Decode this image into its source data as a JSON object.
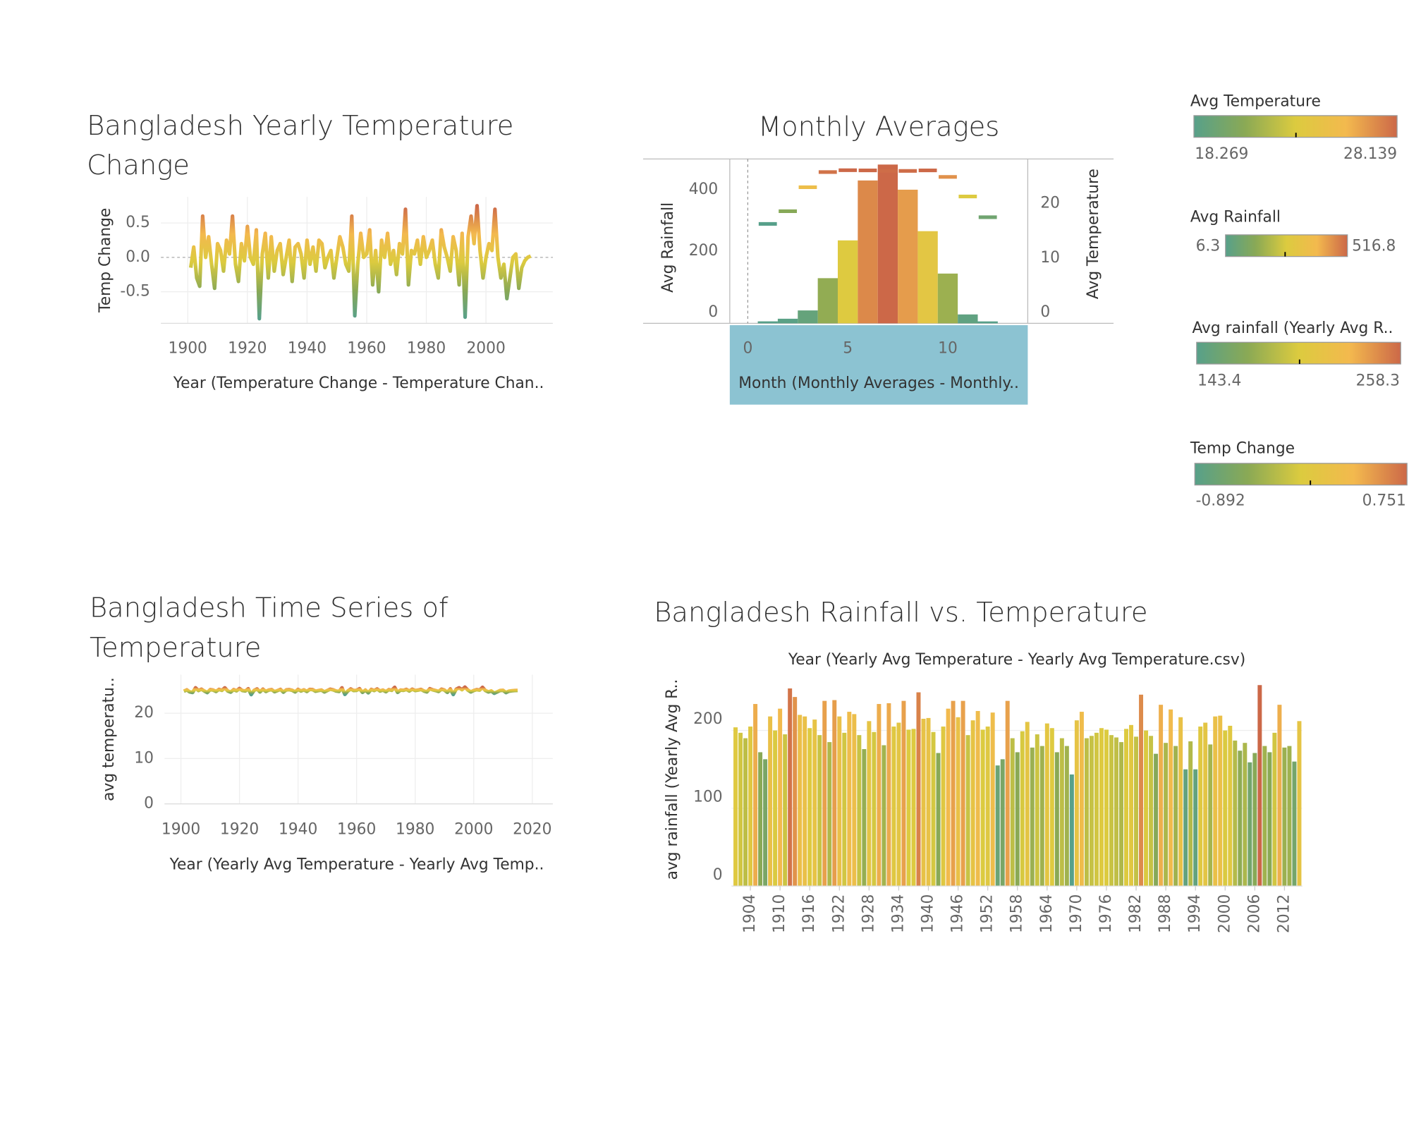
{
  "palette": [
    "#57a08a",
    "#8aa955",
    "#dccb3f",
    "#f3b94e",
    "#cc6848"
  ],
  "legends": [
    {
      "title": "Avg Temperature",
      "min": 18.269,
      "max": 28.139
    },
    {
      "title": "Avg Rainfall",
      "min": 6.3,
      "max": 516.8
    },
    {
      "title": "Avg rainfall (Yearly Avg R..",
      "min": 143.4,
      "max": 258.3
    },
    {
      "title": "Temp Change",
      "min": -0.892,
      "max": 0.751
    }
  ],
  "chart_data": [
    {
      "type": "line",
      "title": "Bangladesh Yearly Temperature Change",
      "y_label": "Temp Change",
      "x_label": "Year (Temperature Change - Temperature Chan..",
      "x": [
        1901,
        1902,
        1903,
        1904,
        1905,
        1906,
        1907,
        1908,
        1909,
        1910,
        1911,
        1912,
        1913,
        1914,
        1915,
        1916,
        1917,
        1918,
        1919,
        1920,
        1921,
        1922,
        1923,
        1924,
        1925,
        1926,
        1927,
        1928,
        1929,
        1930,
        1931,
        1932,
        1933,
        1934,
        1935,
        1936,
        1937,
        1938,
        1939,
        1940,
        1941,
        1942,
        1943,
        1944,
        1945,
        1946,
        1947,
        1948,
        1949,
        1950,
        1951,
        1952,
        1953,
        1954,
        1955,
        1956,
        1957,
        1958,
        1959,
        1960,
        1961,
        1962,
        1963,
        1964,
        1965,
        1966,
        1967,
        1968,
        1969,
        1970,
        1971,
        1972,
        1973,
        1974,
        1975,
        1976,
        1977,
        1978,
        1979,
        1980,
        1981,
        1982,
        1983,
        1984,
        1985,
        1986,
        1987,
        1988,
        1989,
        1990,
        1991,
        1992,
        1993,
        1994,
        1995,
        1996,
        1997,
        1998,
        1999,
        2000,
        2001,
        2002,
        2003,
        2004,
        2005,
        2006,
        2007,
        2008,
        2009,
        2010,
        2011,
        2012,
        2013,
        2014,
        2015
      ],
      "values": [
        -0.15,
        0.15,
        -0.3,
        -0.42,
        0.6,
        0.0,
        0.3,
        -0.1,
        -0.45,
        0.2,
        0.1,
        -0.2,
        0.25,
        0.05,
        0.6,
        -0.1,
        -0.35,
        0.2,
        -0.05,
        0.45,
        0.0,
        -0.1,
        0.4,
        -0.892,
        0.05,
        0.35,
        -0.3,
        0.3,
        -0.2,
        0.1,
        0.2,
        -0.25,
        0.0,
        0.25,
        -0.35,
        0.15,
        0.2,
        0.05,
        -0.3,
        0.25,
        -0.1,
        0.15,
        -0.2,
        0.25,
        0.2,
        -0.15,
        0.0,
        0.1,
        -0.3,
        0.0,
        0.3,
        0.15,
        -0.1,
        -0.2,
        0.6,
        -0.85,
        -0.1,
        0.35,
        0.0,
        0.05,
        0.4,
        -0.4,
        0.1,
        -0.5,
        0.25,
        0.0,
        0.35,
        -0.1,
        0.1,
        -0.25,
        0.2,
        0.05,
        0.7,
        -0.4,
        0.1,
        0.05,
        0.25,
        -0.1,
        0.3,
        0.0,
        0.1,
        0.25,
        -0.1,
        -0.3,
        0.4,
        0.15,
        0.0,
        -0.2,
        0.3,
        0.1,
        -0.4,
        0.35,
        -0.87,
        0.3,
        0.6,
        0.2,
        0.751,
        0.1,
        -0.3,
        0.0,
        0.2,
        0.1,
        0.7,
        0.0,
        -0.3,
        -0.1,
        -0.6,
        -0.3,
        0.0,
        0.05,
        -0.45,
        -0.15,
        -0.05,
        0.0,
        0.02
      ],
      "xlim": [
        1891,
        2022.4
      ],
      "xticks": [
        1900,
        1920,
        1940,
        1960,
        1980,
        2000
      ],
      "ylim": [
        -0.96,
        0.88
      ],
      "yticks": [
        -0.5,
        {
          "value": 0,
          "label": "0.0"
        },
        0.5
      ],
      "grid": true
    },
    {
      "type": "combo",
      "title": "Monthly Averages",
      "y_label": "Avg Rainfall",
      "y2_label": "Avg Temperature",
      "x_label": "Month (Monthly Averages - Monthly..",
      "x": [
        1,
        2,
        3,
        4,
        5,
        6,
        7,
        8,
        9,
        10,
        11,
        12
      ],
      "series": [
        {
          "mark": "bar",
          "axis": "y",
          "values": [
            6.5,
            15,
            42,
            147,
            270,
            465,
            516.8,
            435,
            300,
            162,
            29,
            6.3
          ]
        },
        {
          "mark": "dash",
          "axis": "y2",
          "values": [
            18.269,
            20.6,
            25.0,
            27.8,
            28.139,
            28.1,
            28.0,
            28.0,
            28.1,
            26.9,
            23.3,
            19.5
          ]
        }
      ],
      "xlim": [
        -0.9,
        14
      ],
      "xticks": [
        0,
        5,
        10
      ],
      "ylim": [
        0,
        535
      ],
      "yticks": [
        0,
        200,
        400
      ],
      "y2lim": [
        0,
        30.2
      ],
      "y2ticks": [
        0,
        10,
        20
      ]
    },
    {
      "type": "line",
      "title": "Bangladesh Time Series of Temperature",
      "y_label": "avg temperatu..",
      "x_label": "Year (Yearly Avg Temperature - Yearly Avg Temp..",
      "x": [
        1901,
        1902,
        1903,
        1904,
        1905,
        1906,
        1907,
        1908,
        1909,
        1910,
        1911,
        1912,
        1913,
        1914,
        1915,
        1916,
        1917,
        1918,
        1919,
        1920,
        1921,
        1922,
        1923,
        1924,
        1925,
        1926,
        1927,
        1928,
        1929,
        1930,
        1931,
        1932,
        1933,
        1934,
        1935,
        1936,
        1937,
        1938,
        1939,
        1940,
        1941,
        1942,
        1943,
        1944,
        1945,
        1946,
        1947,
        1948,
        1949,
        1950,
        1951,
        1952,
        1953,
        1954,
        1955,
        1956,
        1957,
        1958,
        1959,
        1960,
        1961,
        1962,
        1963,
        1964,
        1965,
        1966,
        1967,
        1968,
        1969,
        1970,
        1971,
        1972,
        1973,
        1974,
        1975,
        1976,
        1977,
        1978,
        1979,
        1980,
        1981,
        1982,
        1983,
        1984,
        1985,
        1986,
        1987,
        1988,
        1989,
        1990,
        1991,
        1992,
        1993,
        1994,
        1995,
        1996,
        1997,
        1998,
        1999,
        2000,
        2001,
        2002,
        2003,
        2004,
        2005,
        2006,
        2007,
        2008,
        2009,
        2010,
        2011,
        2012,
        2013,
        2014,
        2015
      ],
      "values": [
        24.85,
        25.15,
        24.7,
        24.58,
        25.6,
        25.0,
        25.3,
        24.9,
        24.55,
        25.2,
        25.1,
        24.8,
        25.25,
        25.05,
        25.6,
        24.9,
        24.65,
        25.2,
        24.95,
        25.45,
        25.0,
        24.9,
        25.4,
        24.11,
        25.05,
        25.35,
        24.7,
        25.3,
        24.8,
        25.1,
        25.2,
        24.75,
        25.0,
        25.25,
        24.65,
        25.15,
        25.2,
        25.05,
        24.7,
        25.25,
        24.9,
        25.15,
        24.8,
        25.25,
        25.2,
        24.85,
        25.0,
        25.1,
        24.7,
        25.0,
        25.3,
        25.15,
        24.9,
        24.8,
        25.6,
        24.15,
        24.9,
        25.35,
        25.0,
        25.05,
        25.4,
        24.6,
        25.1,
        24.5,
        25.25,
        25.0,
        25.35,
        24.9,
        25.1,
        24.75,
        25.2,
        25.05,
        25.7,
        24.6,
        25.1,
        25.05,
        25.25,
        24.9,
        25.3,
        25.0,
        25.1,
        25.25,
        24.9,
        24.7,
        25.4,
        25.15,
        25.0,
        24.8,
        25.3,
        25.1,
        24.6,
        25.35,
        24.13,
        25.3,
        25.6,
        25.2,
        25.75,
        25.1,
        24.7,
        25.0,
        25.2,
        25.1,
        25.7,
        25.0,
        24.7,
        24.9,
        24.4,
        24.7,
        25.0,
        25.05,
        24.55,
        24.85,
        24.95,
        25.0,
        25.02
      ],
      "xlim": [
        1894.4,
        2027
      ],
      "xticks": [
        1900,
        1920,
        1940,
        1960,
        1980,
        2000,
        2020
      ],
      "ylim": [
        0,
        28.5
      ],
      "yticks": [
        0,
        10,
        20
      ],
      "grid": true
    },
    {
      "type": "bar",
      "title": "Bangladesh Rainfall vs. Temperature",
      "x_label": "Year (Yearly Avg Temperature - Yearly Avg Temperature.csv)",
      "y_label": "avg rainfall (Yearly Avg R..",
      "x": [
        1901,
        1902,
        1903,
        1904,
        1905,
        1906,
        1907,
        1908,
        1909,
        1910,
        1911,
        1912,
        1913,
        1914,
        1915,
        1916,
        1917,
        1918,
        1919,
        1920,
        1921,
        1922,
        1923,
        1924,
        1925,
        1926,
        1927,
        1928,
        1929,
        1930,
        1931,
        1932,
        1933,
        1934,
        1935,
        1936,
        1937,
        1938,
        1939,
        1940,
        1941,
        1942,
        1943,
        1944,
        1945,
        1946,
        1947,
        1948,
        1949,
        1950,
        1951,
        1952,
        1953,
        1954,
        1955,
        1956,
        1957,
        1958,
        1959,
        1960,
        1961,
        1962,
        1963,
        1964,
        1965,
        1966,
        1967,
        1968,
        1969,
        1970,
        1971,
        1972,
        1973,
        1974,
        1975,
        1976,
        1977,
        1978,
        1979,
        1980,
        1981,
        1982,
        1983,
        1984,
        1985,
        1986,
        1987,
        1988,
        1989,
        1990,
        1991,
        1992,
        1993,
        1994,
        1995,
        1996,
        1997,
        1998,
        1999,
        2000,
        2001,
        2002,
        2003,
        2004,
        2005,
        2006,
        2007,
        2008,
        2009,
        2010,
        2011,
        2012,
        2013,
        2014,
        2015
      ],
      "values": [
        204,
        197,
        190,
        205,
        234,
        172,
        163,
        218,
        200,
        228,
        195,
        254,
        243,
        220,
        218,
        203,
        214,
        194,
        238,
        185,
        239,
        218,
        197,
        224,
        221,
        194,
        176,
        212,
        198,
        234,
        181,
        235,
        205,
        210,
        238,
        201,
        202,
        249,
        215,
        216,
        198,
        171,
        205,
        228,
        238,
        217,
        238,
        194,
        213,
        225,
        201,
        205,
        223,
        155,
        163,
        238,
        190,
        172,
        199,
        211,
        178,
        195,
        180,
        209,
        203,
        172,
        190,
        180,
        143.4,
        213,
        224,
        190,
        193,
        197,
        203,
        201,
        194,
        191,
        185,
        202,
        207,
        192,
        246,
        200,
        193,
        170,
        233,
        184,
        227,
        180,
        217,
        150,
        186,
        150,
        205,
        210,
        182,
        218,
        219,
        200,
        206,
        187,
        174,
        184,
        159,
        171,
        258.3,
        180,
        172,
        197,
        233,
        178,
        180,
        160,
        212
      ],
      "xlim": [
        1900.2,
        2015.6
      ],
      "xticks": [
        1904,
        1910,
        1916,
        1922,
        1928,
        1934,
        1940,
        1946,
        1952,
        1958,
        1964,
        1970,
        1976,
        1982,
        1988,
        1994,
        2000,
        2006,
        2012
      ],
      "ylim": [
        0,
        274
      ],
      "yticks": [
        0,
        100,
        200
      ],
      "grid": true
    }
  ]
}
